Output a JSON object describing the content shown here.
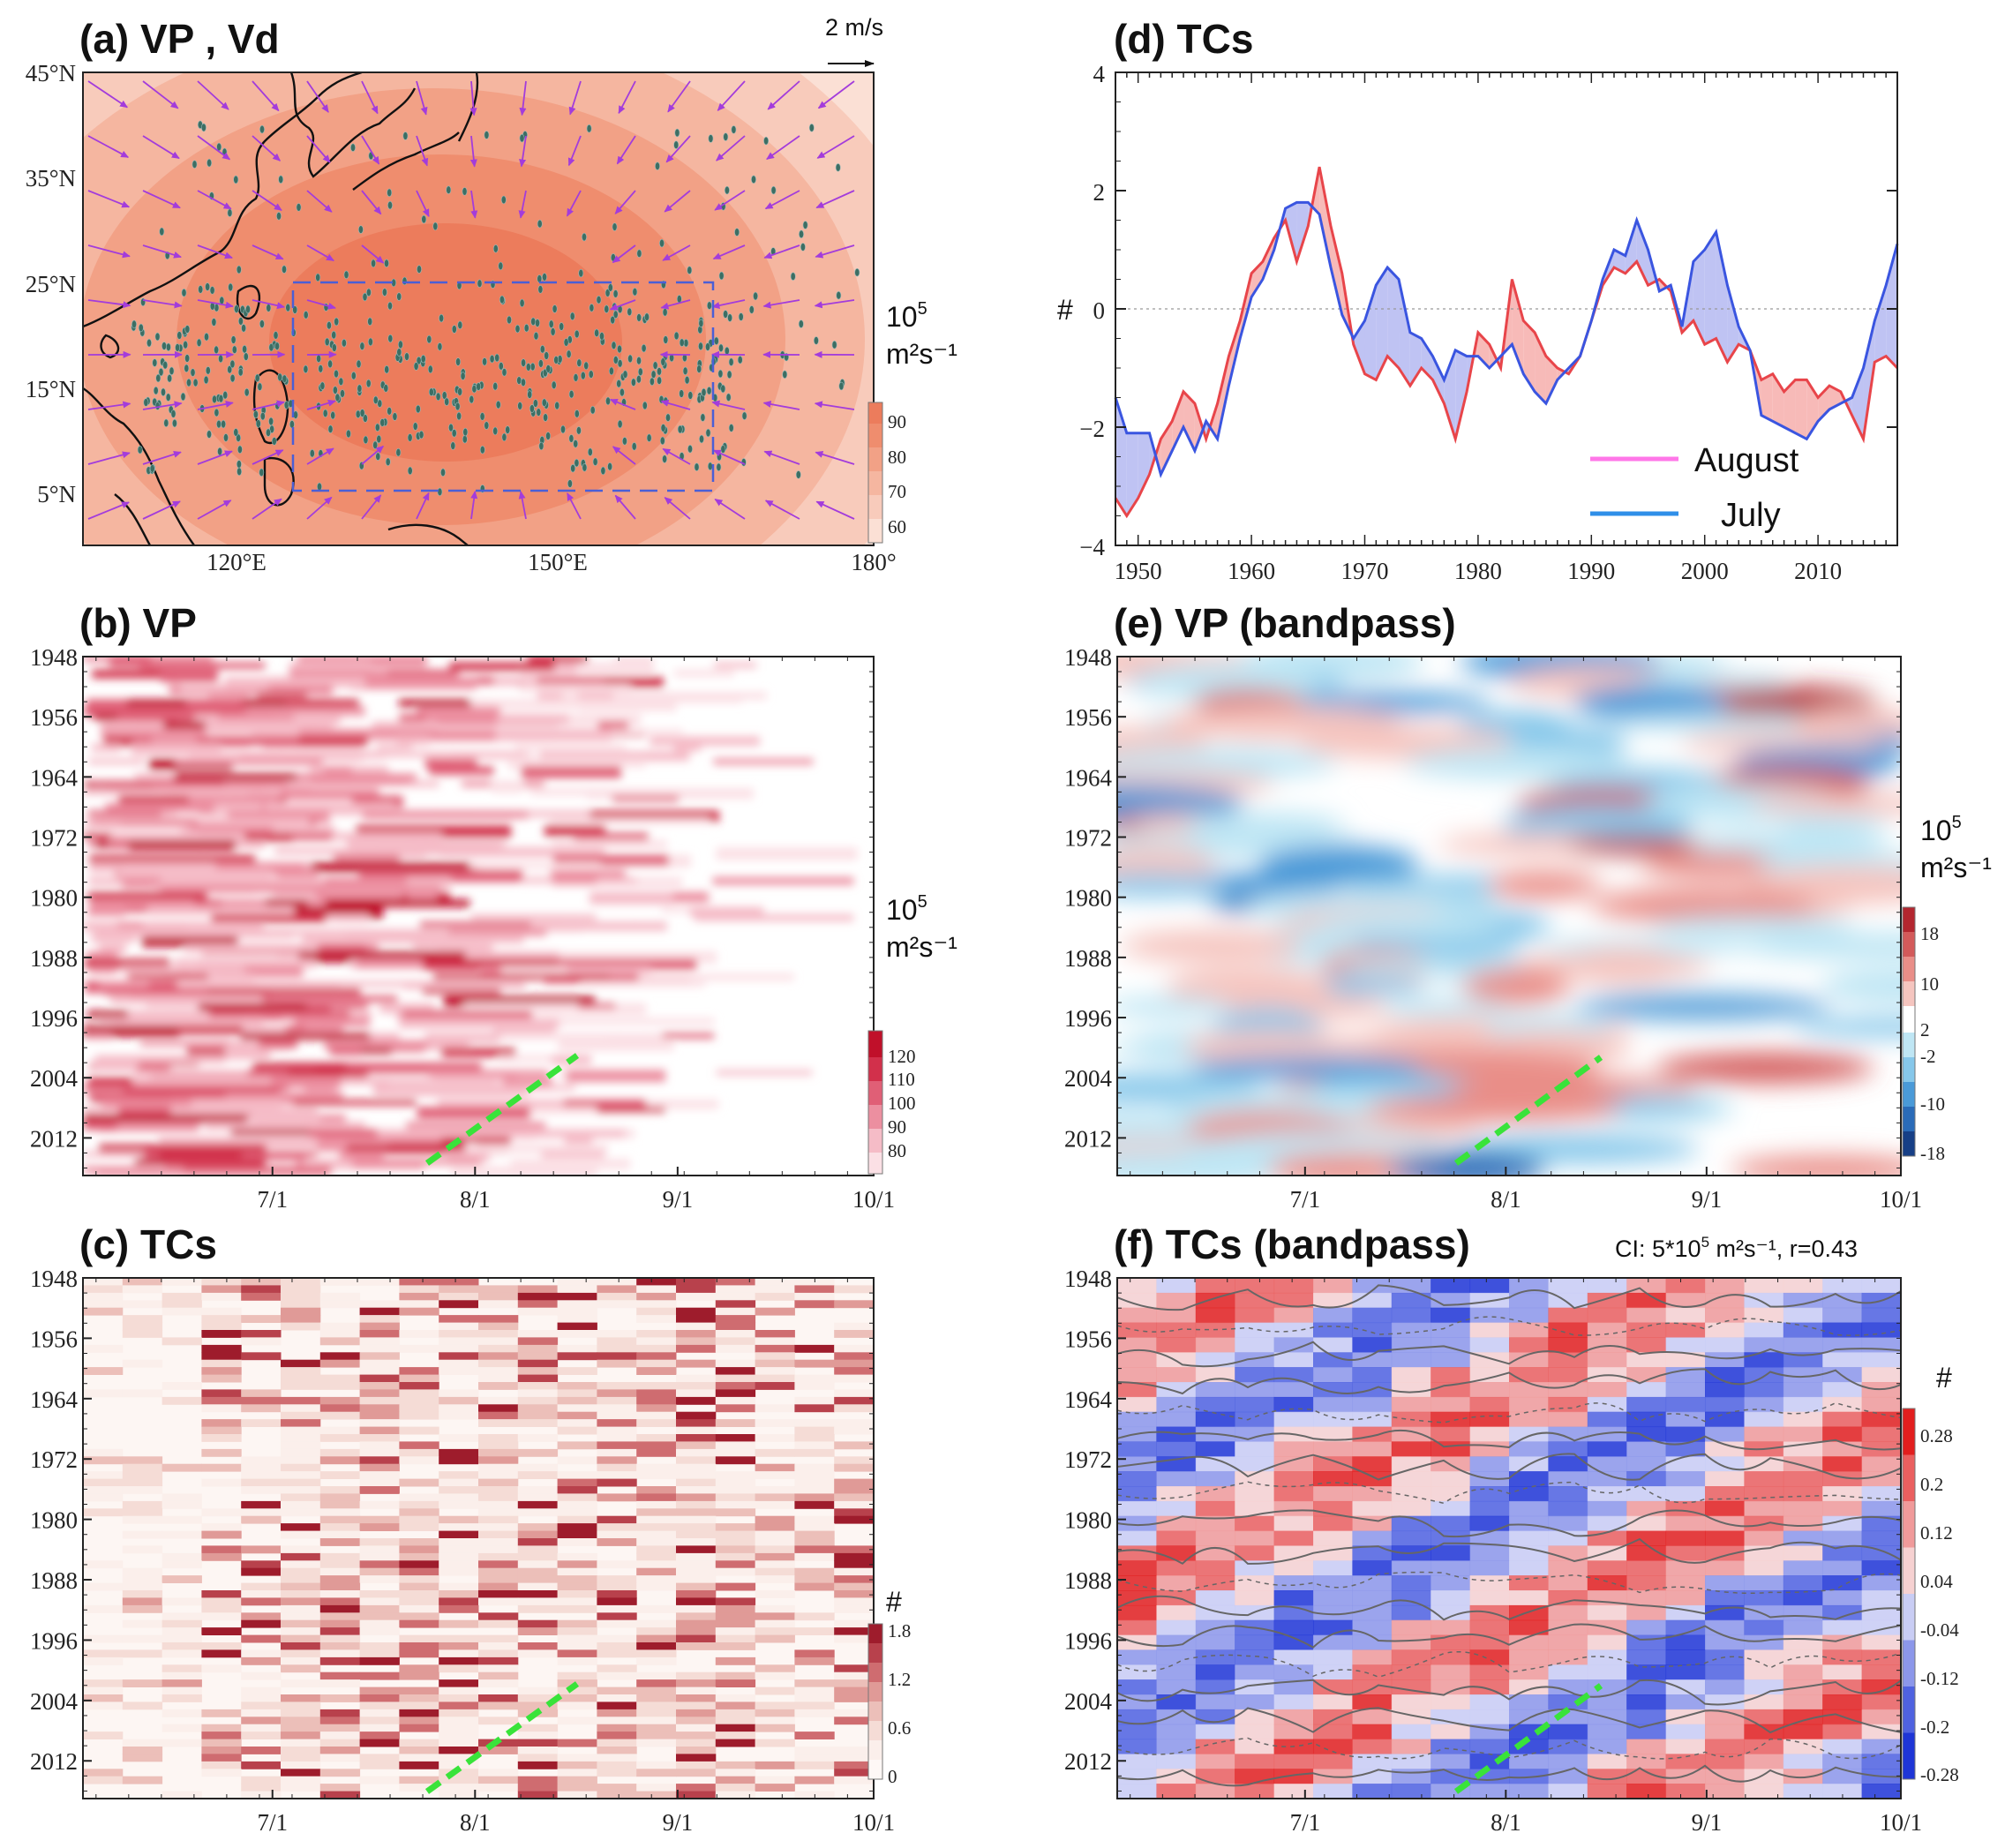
{
  "figure": {
    "panels": {
      "a": {
        "title": "(a) VP , Vd",
        "vector_ref": "2 m/s",
        "yticks": [
          "45°N",
          "35°N",
          "25°N",
          "15°N",
          "5°N"
        ],
        "xticks": [
          "120°E",
          "150°E",
          "180°"
        ],
        "unit_base": "10",
        "unit_exp": "5",
        "unit_line2": "m²s⁻¹",
        "cbar_ticks": [
          "90",
          "80",
          "70",
          "60"
        ]
      },
      "b": {
        "title": "(b) VP",
        "unit_base": "10",
        "unit_exp": "5",
        "unit_line2": "m²s⁻¹",
        "cbar_ticks": [
          "120",
          "110",
          "100",
          "90",
          "80"
        ]
      },
      "c": {
        "title": "(c) TCs",
        "unit": "#",
        "cbar_ticks": [
          "1.8",
          "1.2",
          "0.6",
          "0"
        ]
      },
      "d": {
        "title": "(d) TCs",
        "ylabel": "#"
      },
      "e": {
        "title": "(e) VP (bandpass)",
        "unit_base": "10",
        "unit_exp": "5",
        "unit_line2": "m²s⁻¹",
        "cbar_ticks": [
          "18",
          "10",
          "2",
          "-2",
          "-10",
          "-18"
        ]
      },
      "f": {
        "title": "(f) TCs (bandpass)",
        "unit": "#",
        "note_prefix": "CI: 5*10",
        "note_exp": "5",
        "note_suffix": " m²s⁻¹, r=0.43",
        "cbar_ticks": [
          "0.28",
          "0.2",
          "0.12",
          "0.04",
          "-0.04",
          "-0.12",
          "-0.2",
          "-0.28"
        ]
      }
    },
    "hovmoller_axes": {
      "yticks": [
        "1948",
        "1956",
        "1964",
        "1972",
        "1980",
        "1988",
        "1996",
        "2004",
        "2012"
      ],
      "xticks": [
        "7/1",
        "8/1",
        "9/1",
        "10/1"
      ]
    },
    "colors": {
      "red_dark": "#c0102a",
      "blue_dark": "#1f4fc8",
      "green_dash": "#39e33a",
      "purple_vec": "#a33cdb",
      "august": "#e8454a",
      "july": "#3a55e0"
    }
  },
  "chart_data": [
    {
      "panel": "d",
      "type": "line",
      "title": "(d) TCs",
      "ylabel": "#",
      "xlim": [
        1948,
        2017
      ],
      "ylim": [
        -4,
        4
      ],
      "xticks": [
        1950,
        1960,
        1970,
        1980,
        1990,
        2000,
        2010
      ],
      "yticks": [
        -4,
        -2,
        0,
        2,
        4
      ],
      "legend_position": "bottom-right",
      "x": [
        1948,
        1949,
        1950,
        1951,
        1952,
        1953,
        1954,
        1955,
        1956,
        1957,
        1958,
        1959,
        1960,
        1961,
        1962,
        1963,
        1964,
        1965,
        1966,
        1967,
        1968,
        1969,
        1970,
        1971,
        1972,
        1973,
        1974,
        1975,
        1976,
        1977,
        1978,
        1979,
        1980,
        1981,
        1982,
        1983,
        1984,
        1985,
        1986,
        1987,
        1988,
        1989,
        1990,
        1991,
        1992,
        1993,
        1994,
        1995,
        1996,
        1997,
        1998,
        1999,
        2000,
        2001,
        2002,
        2003,
        2004,
        2005,
        2006,
        2007,
        2008,
        2009,
        2010,
        2011,
        2012,
        2013,
        2014,
        2015,
        2016,
        2017
      ],
      "series": [
        {
          "name": "August",
          "values": [
            -3.2,
            -3.5,
            -3.2,
            -2.8,
            -2.2,
            -1.9,
            -1.4,
            -1.6,
            -2.2,
            -1.6,
            -0.8,
            -0.2,
            0.6,
            0.8,
            1.2,
            1.5,
            0.8,
            1.4,
            2.4,
            1.4,
            0.6,
            -0.6,
            -1.1,
            -1.2,
            -0.8,
            -1.0,
            -1.3,
            -1.0,
            -1.2,
            -1.6,
            -2.2,
            -1.4,
            -0.4,
            -0.6,
            -1.0,
            0.5,
            -0.2,
            -0.4,
            -0.8,
            -1.0,
            -1.1,
            -0.8,
            -0.2,
            0.4,
            0.7,
            0.6,
            0.8,
            0.4,
            0.5,
            0.3,
            -0.4,
            -0.2,
            -0.6,
            -0.5,
            -0.9,
            -0.6,
            -0.7,
            -1.2,
            -1.1,
            -1.4,
            -1.2,
            -1.2,
            -1.5,
            -1.3,
            -1.4,
            -1.8,
            -2.2,
            -0.9,
            -0.8,
            -1.0
          ]
        },
        {
          "name": "July",
          "values": [
            -1.5,
            -2.1,
            -2.1,
            -2.1,
            -2.8,
            -2.4,
            -2.0,
            -2.4,
            -1.9,
            -2.2,
            -1.3,
            -0.5,
            0.2,
            0.5,
            1.0,
            1.7,
            1.8,
            1.8,
            1.6,
            0.7,
            -0.1,
            -0.5,
            -0.2,
            0.4,
            0.7,
            0.5,
            -0.4,
            -0.5,
            -0.8,
            -1.2,
            -0.7,
            -0.8,
            -0.8,
            -1.0,
            -0.8,
            -0.6,
            -1.1,
            -1.4,
            -1.6,
            -1.2,
            -1.0,
            -0.8,
            -0.2,
            0.5,
            1.0,
            0.9,
            1.5,
            1.0,
            0.3,
            0.4,
            -0.3,
            0.8,
            1.0,
            1.3,
            0.4,
            -0.3,
            -0.7,
            -1.8,
            -1.9,
            -2.0,
            -2.1,
            -2.2,
            -1.9,
            -1.7,
            -1.6,
            -1.5,
            -1.0,
            -0.2,
            0.4,
            1.1
          ]
        }
      ]
    }
  ]
}
